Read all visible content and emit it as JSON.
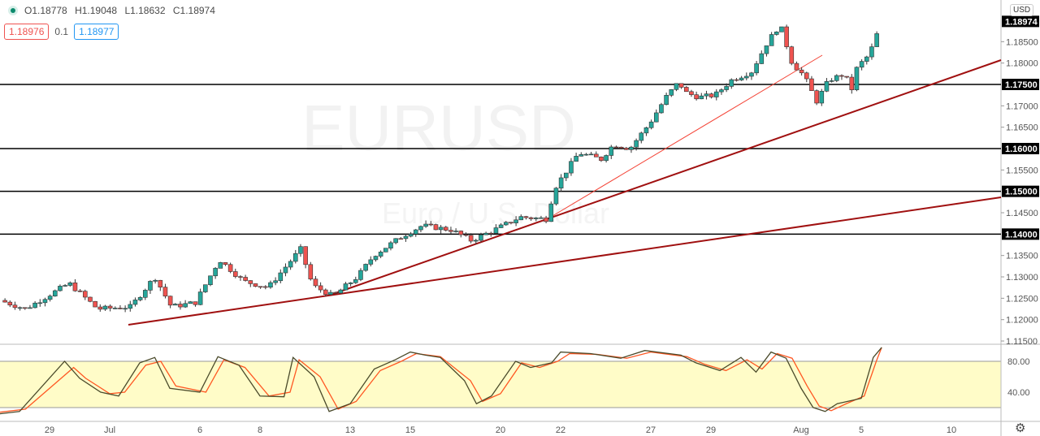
{
  "symbol": {
    "watermark": "EURUSD",
    "description": "Euro / U.S. Dollar"
  },
  "legend": {
    "open": "O1.18778",
    "high": "H1.19048",
    "low": "L1.18632",
    "close": "C1.18974"
  },
  "quote": {
    "sell": "1.18976",
    "spread": "0.1",
    "buy": "1.18977"
  },
  "currency": "USD",
  "colors": {
    "up": "#26a69a",
    "down": "#ef5350",
    "trend": "#a01010",
    "stochK": "#4a4a2a",
    "stochD": "#ff5722",
    "band": "#fffcc8"
  },
  "chart_data": {
    "type": "candlestick",
    "price_axis": [
      "1.18500",
      "1.18000",
      "1.17000",
      "1.16500",
      "1.15500",
      "1.14500",
      "1.13500",
      "1.13000",
      "1.12500",
      "1.12000",
      "1.11500"
    ],
    "horizontal_levels": [
      "1.17500",
      "1.16000",
      "1.15000",
      "1.14000"
    ],
    "last_price": "1.18974",
    "x_labels": [
      {
        "t": "29",
        "d": -2
      },
      {
        "t": "Jul",
        "d": 0
      },
      {
        "t": "6",
        "d": 3
      },
      {
        "t": "8",
        "d": 5
      },
      {
        "t": "13",
        "d": 8
      },
      {
        "t": "15",
        "d": 10
      },
      {
        "t": "20",
        "d": 13
      },
      {
        "t": "22",
        "d": 15
      },
      {
        "t": "27",
        "d": 18
      },
      {
        "t": "29",
        "d": 20
      },
      {
        "t": "Aug",
        "d": 23
      },
      {
        "t": "5",
        "d": 25
      },
      {
        "t": "10",
        "d": 28
      }
    ],
    "close_path": [
      [
        -3.65,
        1.1245
      ],
      [
        -2.8,
        1.1225
      ],
      [
        -1.35,
        1.1285
      ],
      [
        -0.4,
        1.1225
      ],
      [
        0.7,
        1.123
      ],
      [
        1.5,
        1.13
      ],
      [
        2.05,
        1.123
      ],
      [
        2.85,
        1.124
      ],
      [
        3.65,
        1.134
      ],
      [
        4.45,
        1.129
      ],
      [
        5.27,
        1.1275
      ],
      [
        6.35,
        1.1365
      ],
      [
        6.75,
        1.128
      ],
      [
        7.43,
        1.1255
      ],
      [
        8.24,
        1.13
      ],
      [
        8.78,
        1.135
      ],
      [
        9.73,
        1.1395
      ],
      [
        10.4,
        1.142
      ],
      [
        11.35,
        1.141
      ],
      [
        12.03,
        1.1385
      ],
      [
        13.1,
        1.142
      ],
      [
        13.65,
        1.144
      ],
      [
        14.6,
        1.1435
      ],
      [
        14.73,
        1.15
      ],
      [
        15.6,
        1.159
      ],
      [
        16.35,
        1.1575
      ],
      [
        16.76,
        1.161
      ],
      [
        17.3,
        1.16
      ],
      [
        17.97,
        1.166
      ],
      [
        18.5,
        1.172
      ],
      [
        18.92,
        1.1755
      ],
      [
        19.19,
        1.173
      ],
      [
        19.6,
        1.172
      ],
      [
        20.14,
        1.1725
      ],
      [
        20.68,
        1.176
      ],
      [
        21.35,
        1.178
      ],
      [
        21.89,
        1.185
      ],
      [
        22.3,
        1.189
      ],
      [
        22.7,
        1.18
      ],
      [
        23.1,
        1.177
      ],
      [
        23.51,
        1.171
      ],
      [
        23.92,
        1.176
      ],
      [
        24.46,
        1.1775
      ],
      [
        24.65,
        1.173
      ],
      [
        24.86,
        1.179
      ],
      [
        25.27,
        1.182
      ],
      [
        25.68,
        1.18974
      ]
    ],
    "stochastic": {
      "levels": [
        "80.00",
        "40.00"
      ],
      "k": [
        [
          -3.65,
          12
        ],
        [
          -3,
          15
        ],
        [
          -1.5,
          80
        ],
        [
          -1,
          58
        ],
        [
          -0.3,
          40
        ],
        [
          0.3,
          35
        ],
        [
          1,
          78
        ],
        [
          1.5,
          85
        ],
        [
          2,
          45
        ],
        [
          3,
          40
        ],
        [
          3.6,
          86
        ],
        [
          4.3,
          75
        ],
        [
          5,
          35
        ],
        [
          5.8,
          34
        ],
        [
          6.1,
          85
        ],
        [
          6.8,
          60
        ],
        [
          7.3,
          15
        ],
        [
          8,
          25
        ],
        [
          8.8,
          70
        ],
        [
          9.5,
          82
        ],
        [
          10,
          92
        ],
        [
          10.5,
          88
        ],
        [
          11,
          85
        ],
        [
          11.8,
          55
        ],
        [
          12.2,
          25
        ],
        [
          12.7,
          35
        ],
        [
          13.5,
          80
        ],
        [
          14,
          72
        ],
        [
          14.7,
          78
        ],
        [
          15,
          92
        ],
        [
          16,
          90
        ],
        [
          17,
          84
        ],
        [
          17.8,
          94
        ],
        [
          19,
          88
        ],
        [
          19.5,
          78
        ],
        [
          20.3,
          68
        ],
        [
          21,
          85
        ],
        [
          21.5,
          66
        ],
        [
          22,
          92
        ],
        [
          22.5,
          84
        ],
        [
          23,
          45
        ],
        [
          23.4,
          20
        ],
        [
          23.8,
          15
        ],
        [
          24.2,
          25
        ],
        [
          25,
          32
        ],
        [
          25.4,
          85
        ],
        [
          25.68,
          98
        ]
      ],
      "d": [
        [
          -3.65,
          14
        ],
        [
          -2.8,
          18
        ],
        [
          -1.2,
          72
        ],
        [
          -0.8,
          58
        ],
        [
          0,
          38
        ],
        [
          0.5,
          40
        ],
        [
          1.2,
          75
        ],
        [
          1.7,
          80
        ],
        [
          2.2,
          48
        ],
        [
          3.2,
          40
        ],
        [
          3.8,
          82
        ],
        [
          4.5,
          72
        ],
        [
          5.3,
          35
        ],
        [
          6,
          40
        ],
        [
          6.3,
          82
        ],
        [
          7,
          60
        ],
        [
          7.6,
          18
        ],
        [
          8.2,
          28
        ],
        [
          9,
          68
        ],
        [
          9.7,
          80
        ],
        [
          10.2,
          90
        ],
        [
          11,
          86
        ],
        [
          12,
          55
        ],
        [
          12.4,
          28
        ],
        [
          13,
          38
        ],
        [
          13.7,
          78
        ],
        [
          14.3,
          72
        ],
        [
          14.9,
          80
        ],
        [
          15.3,
          90
        ],
        [
          16.2,
          89
        ],
        [
          17.2,
          84
        ],
        [
          18,
          92
        ],
        [
          19.2,
          86
        ],
        [
          19.8,
          76
        ],
        [
          20.5,
          68
        ],
        [
          21.2,
          82
        ],
        [
          21.7,
          70
        ],
        [
          22.2,
          90
        ],
        [
          22.7,
          84
        ],
        [
          23.2,
          48
        ],
        [
          23.6,
          22
        ],
        [
          24,
          16
        ],
        [
          24.5,
          25
        ],
        [
          25.1,
          35
        ],
        [
          25.5,
          80
        ],
        [
          25.68,
          98
        ]
      ]
    }
  }
}
